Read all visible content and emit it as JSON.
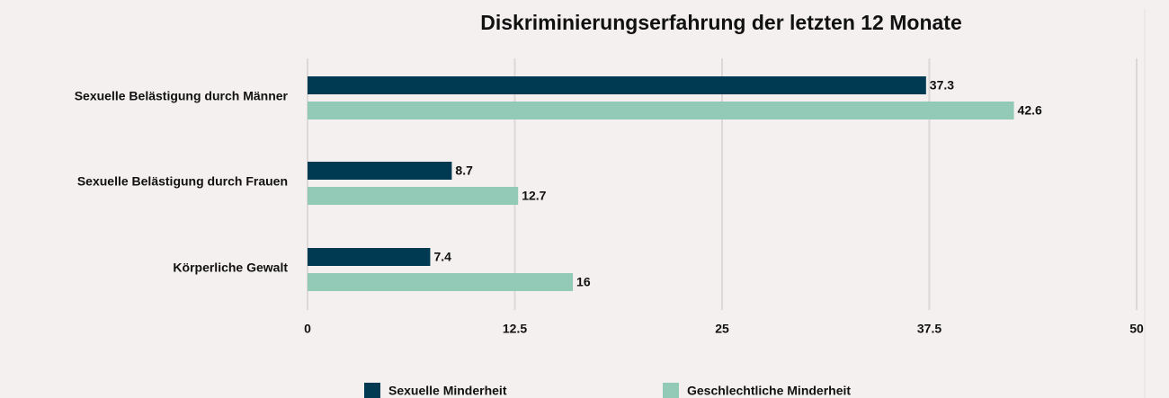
{
  "chart_data": {
    "type": "bar",
    "orientation": "horizontal",
    "title": "Diskriminierungserfahrung der letzten 12 Monate",
    "categories": [
      "Sexuelle Belästigung durch Männer",
      "Sexuelle Belästigung durch Frauen",
      "Körperliche Gewalt"
    ],
    "series": [
      {
        "name": "Sexuelle Minderheit",
        "color": "#003a52",
        "values": [
          37.3,
          8.7,
          7.4
        ]
      },
      {
        "name": "Geschlechtliche Minderheit",
        "color": "#93cab7",
        "values": [
          42.6,
          12.7,
          16
        ]
      }
    ],
    "xlim": [
      0,
      50
    ],
    "xticks": [
      0,
      12.5,
      25,
      37.5,
      50
    ],
    "grid": true,
    "legend": "bottom"
  }
}
